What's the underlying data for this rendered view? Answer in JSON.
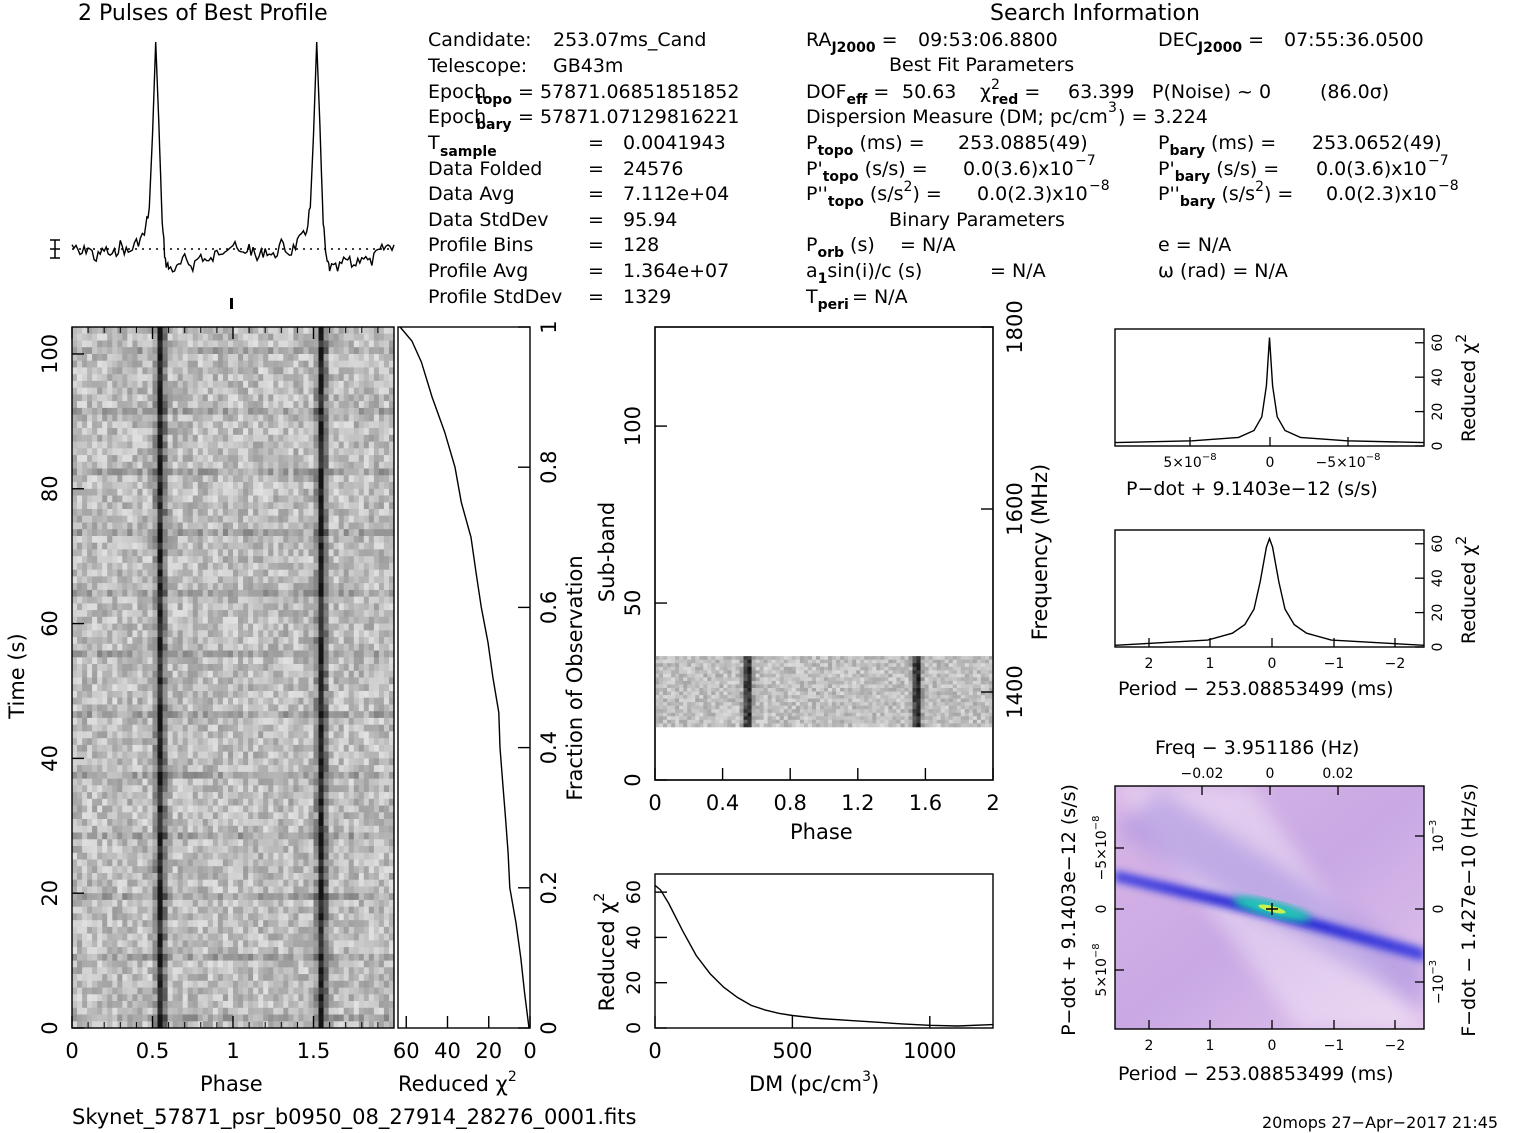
{
  "header": {
    "profile_title": "2 Pulses of Best Profile",
    "search_title": "Search Information",
    "best_fit_title": "Best Fit Parameters",
    "binary_title": "Binary Parameters"
  },
  "candidate_info": [
    {
      "label": "Candidate:",
      "sub": "",
      "value": "253.07ms_Cand"
    },
    {
      "label": "Telescope:",
      "sub": "",
      "value": "GB43m"
    },
    {
      "label": "Epoch",
      "sub": "topo",
      "value": "= 57871.06851851852"
    },
    {
      "label": "Epoch",
      "sub": "bary",
      "value": "= 57871.07129816221"
    },
    {
      "label": "T",
      "sub": "sample",
      "value": "0.0041943"
    },
    {
      "label": "Data Folded",
      "sub": "",
      "value": "24576"
    },
    {
      "label": "Data Avg",
      "sub": "",
      "value": "7.112e+04"
    },
    {
      "label": "Data StdDev",
      "sub": "",
      "value": "95.94"
    },
    {
      "label": "Profile Bins",
      "sub": "",
      "value": "128"
    },
    {
      "label": "Profile Avg",
      "sub": "",
      "value": "1.364e+07"
    },
    {
      "label": "Profile StdDev",
      "sub": "",
      "value": "1329"
    }
  ],
  "search_info": {
    "ra": "09:53:06.8800",
    "dec": "07:55:36.0500",
    "dof_eff": "50.63",
    "chi2_red": "63.399",
    "p_noise": "P(Noise) ~ 0",
    "sigma": "(86.0σ)",
    "dm_text": "Dispersion Measure (DM; pc/cm",
    "dm_value": ") = 3.224",
    "p_topo": "253.0885(49)",
    "p_bary": "253.0652(49)",
    "pd_topo": "0.0(3.6)x10",
    "pd_bary": "0.0(3.6)x10",
    "pdd_topo": "0.0(2.3)x10",
    "pdd_bary": "0.0(2.3)x10",
    "exp_pd": "−7",
    "exp_pdd": "−8",
    "p_orb": "= N/A",
    "ecc": "e = N/A",
    "a1sini": "= N/A",
    "omega": "ω (rad) = N/A",
    "t_peri": "= N/A"
  },
  "footer": {
    "filename": "Skynet_57871_psr_b0950_08_27914_28276_0001.fits",
    "stamp": "20mops 27−Apr−2017 21:45"
  },
  "chart_data": [
    {
      "id": "profile",
      "type": "line",
      "title": "2 Pulses of Best Profile",
      "x": [
        0.0,
        0.05,
        0.1,
        0.15,
        0.2,
        0.25,
        0.3,
        0.35,
        0.4,
        0.45,
        0.48,
        0.5,
        0.52,
        0.54,
        0.56,
        0.58,
        0.6,
        0.65,
        0.7,
        0.75,
        0.8,
        0.85,
        0.9,
        0.95,
        1.0,
        1.05,
        1.1,
        1.15,
        1.2,
        1.25,
        1.3,
        1.35,
        1.4,
        1.45,
        1.48,
        1.5,
        1.52,
        1.54,
        1.56,
        1.58,
        1.6,
        1.65,
        1.7,
        1.75,
        1.8,
        1.85,
        1.9,
        1.95,
        2.0
      ],
      "y": [
        0.02,
        -0.03,
        0.01,
        -0.05,
        0.0,
        -0.04,
        0.02,
        -0.02,
        0.03,
        0.07,
        0.2,
        0.55,
        1.0,
        0.6,
        0.12,
        -0.06,
        -0.09,
        -0.1,
        -0.05,
        -0.08,
        -0.03,
        -0.07,
        -0.02,
        0.01,
        0.02,
        -0.03,
        0.01,
        -0.05,
        0.0,
        -0.04,
        0.02,
        -0.02,
        0.03,
        0.07,
        0.2,
        0.55,
        1.0,
        0.6,
        0.12,
        -0.06,
        -0.09,
        -0.1,
        -0.05,
        -0.08,
        -0.03,
        -0.07,
        -0.02,
        0.01,
        0.02
      ]
    },
    {
      "id": "phase-time",
      "type": "heatmap",
      "xlabel": "Phase",
      "ylabel": "Time (s)",
      "xlim": [
        0,
        2
      ],
      "ylim": [
        0,
        104
      ],
      "x_ticks": [
        "0",
        "0.5",
        "1",
        "1.5"
      ],
      "y_ticks": [
        "0",
        "20",
        "40",
        "60",
        "80",
        "100"
      ],
      "pulse_phases": [
        0.55,
        1.55
      ]
    },
    {
      "id": "chi2-vs-time",
      "type": "line",
      "xlabel": "Reduced χ",
      "ylabel": "Fraction of Observation",
      "xlim": [
        64,
        0
      ],
      "ylim": [
        0,
        1
      ],
      "x_ticks": [
        "60",
        "40",
        "20",
        "0"
      ],
      "y_ticks": [
        "0",
        "0.2",
        "0.4",
        "0.6",
        "0.8",
        "1"
      ],
      "fraction": [
        0.0,
        0.05,
        0.1,
        0.15,
        0.2,
        0.25,
        0.3,
        0.35,
        0.4,
        0.45,
        0.5,
        0.55,
        0.6,
        0.65,
        0.7,
        0.75,
        0.8,
        0.85,
        0.9,
        0.95,
        0.98,
        1.0
      ],
      "chi2": [
        0.5,
        2.5,
        4.5,
        7.0,
        9.5,
        10.5,
        12.0,
        13.5,
        14.5,
        15.5,
        18.0,
        20.0,
        24.0,
        26.5,
        29.0,
        33.0,
        36.0,
        41.0,
        47.0,
        53.0,
        57.0,
        63.0
      ]
    },
    {
      "id": "phase-subband",
      "type": "heatmap",
      "xlabel": "Phase",
      "ylabel": "Sub-band",
      "y2label": "Frequency (MHz)",
      "xlim": [
        0,
        2
      ],
      "ylim": [
        0,
        128
      ],
      "x_ticks": [
        "0",
        "0.4",
        "0.8",
        "1.2",
        "1.6",
        "2"
      ],
      "y_ticks": [
        "0",
        "50",
        "100"
      ],
      "y2_ticks": [
        "1400",
        "1600",
        "1800"
      ],
      "band_subbands": [
        15,
        35
      ],
      "pulse_phases": [
        0.55,
        1.55
      ]
    },
    {
      "id": "dm-chi2",
      "type": "line",
      "xlabel": "DM (pc/cm",
      "ylabel": "Reduced χ",
      "xlim": [
        0,
        1230
      ],
      "ylim": [
        0,
        68
      ],
      "x_ticks": [
        "0",
        "500",
        "1000"
      ],
      "y_ticks": [
        "0",
        "20",
        "40",
        "60"
      ],
      "dm": [
        0,
        20,
        50,
        100,
        150,
        200,
        250,
        300,
        350,
        400,
        450,
        500,
        600,
        700,
        800,
        900,
        1000,
        1100,
        1230
      ],
      "chi2": [
        63,
        61,
        55,
        43,
        32,
        24,
        18,
        13.5,
        10,
        8,
        6.5,
        5.5,
        4.2,
        3.4,
        2.6,
        1.8,
        1.2,
        0.9,
        1.5
      ]
    },
    {
      "id": "pdot-chi2",
      "type": "line",
      "xlabel": "P−dot + 9.1403e−12 (s/s)",
      "ylabel": "Reduced χ",
      "xlim": [
        1e-07,
        -1e-07
      ],
      "ylim": [
        0,
        68
      ],
      "x_ticks": [
        "5×10",
        "0",
        "−5×10"
      ],
      "y_ticks": [
        "0",
        "20",
        "40",
        "60"
      ],
      "pdot": [
        1e-07,
        5e-08,
        2e-08,
        1e-08,
        5e-09,
        2e-09,
        0,
        -2e-09,
        -5e-09,
        -1e-08,
        -2e-08,
        -5e-08,
        -1e-07
      ],
      "chi2": [
        2,
        3,
        5,
        9,
        17,
        35,
        63,
        35,
        17,
        9,
        5,
        3,
        2
      ]
    },
    {
      "id": "period-chi2",
      "type": "line",
      "xlabel": "Period − 253.08853499 (ms)",
      "ylabel": "Reduced χ",
      "xlim": [
        2.5,
        -2.5
      ],
      "ylim": [
        0,
        68
      ],
      "x_ticks": [
        "2",
        "1",
        "0",
        "−1",
        "−2"
      ],
      "y_ticks": [
        "0",
        "20",
        "40",
        "60"
      ],
      "period": [
        2.5,
        2.0,
        1.5,
        1.0,
        0.6,
        0.4,
        0.25,
        0.15,
        0.05,
        0.0,
        -0.05,
        -0.15,
        -0.25,
        -0.4,
        -0.6,
        -1.0,
        -1.5,
        -2.0,
        -2.5
      ],
      "chi2": [
        1,
        2,
        3,
        4,
        8,
        13,
        22,
        38,
        58,
        63,
        58,
        38,
        22,
        13,
        8,
        4,
        3,
        2,
        1
      ]
    },
    {
      "id": "ppdot-plane",
      "type": "heatmap",
      "title": "Freq − 3.951186 (Hz)",
      "xlabel": "Period − 253.08853499 (ms)",
      "ylabel": "P−dot + 9.1403e−12 (s/s)",
      "y2label": "F−dot − 1.427e−10 (Hz/s)",
      "x_ticks": [
        "2",
        "1",
        "0",
        "−1",
        "−2"
      ],
      "top_ticks": [
        "−0.02",
        "0",
        "0.02"
      ],
      "y_ticks": [
        "5×10",
        "0",
        "−5×10"
      ],
      "y2_ticks": [
        "10",
        "0",
        "−10"
      ]
    }
  ]
}
